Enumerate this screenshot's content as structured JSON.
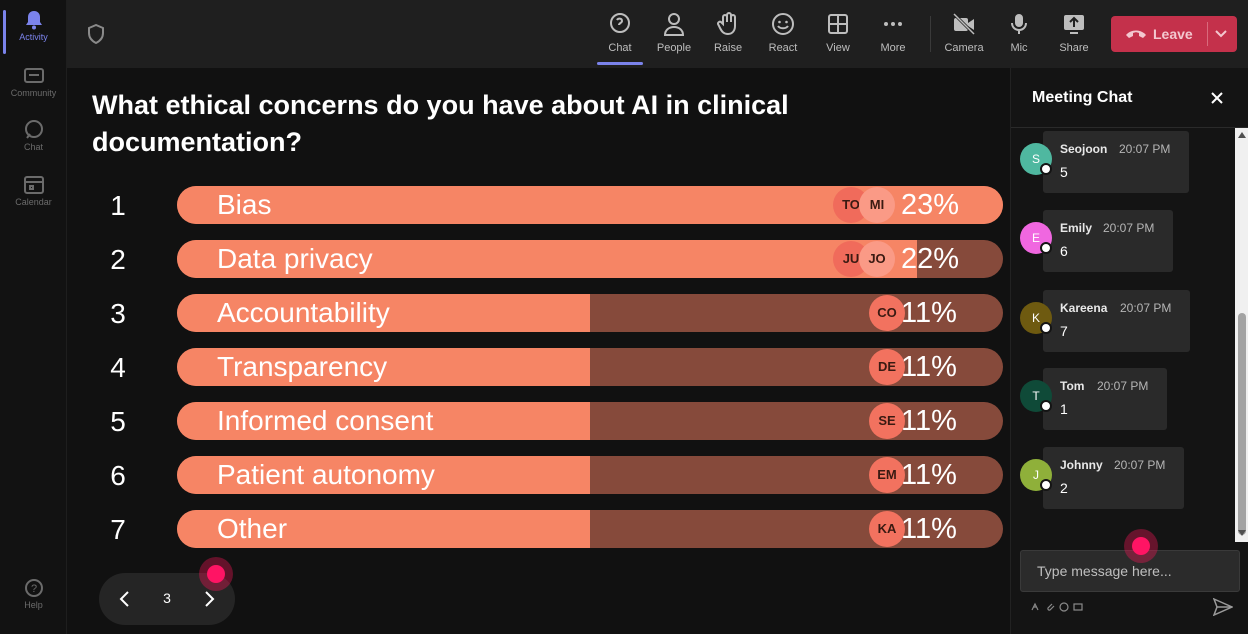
{
  "rail": {
    "items": [
      {
        "label": "Activity",
        "icon": "bell-icon",
        "active": true
      },
      {
        "label": "Community",
        "icon": "community-icon",
        "active": false
      },
      {
        "label": "Chat",
        "icon": "chat-icon",
        "active": false
      },
      {
        "label": "Calendar",
        "icon": "calendar-icon",
        "active": false
      }
    ],
    "help_label": "Help"
  },
  "toolbar": {
    "tools": [
      {
        "label": "Chat",
        "icon": "chat-icon",
        "active": true
      },
      {
        "label": "People",
        "icon": "people-icon"
      },
      {
        "label": "Raise",
        "icon": "hand-icon"
      },
      {
        "label": "React",
        "icon": "smiley-icon"
      },
      {
        "label": "View",
        "icon": "grid-icon"
      },
      {
        "label": "More",
        "icon": "more-icon"
      },
      {
        "label": "Camera",
        "icon": "camera-off-icon"
      },
      {
        "label": "Mic",
        "icon": "mic-icon"
      },
      {
        "label": "Share",
        "icon": "share-icon"
      }
    ],
    "leave_label": "Leave"
  },
  "poll": {
    "question": "What ethical concerns do you have about AI in clinical documentation?",
    "options": [
      {
        "num": "1",
        "label": "Bias",
        "percent": 23,
        "pct_text": "23%",
        "voters": [
          "TO",
          "MI"
        ]
      },
      {
        "num": "2",
        "label": "Data privacy",
        "percent": 22,
        "pct_text": "22%",
        "voters": [
          "JU",
          "JO"
        ]
      },
      {
        "num": "3",
        "label": "Accountability",
        "percent": 11,
        "pct_text": "11%",
        "voters": [
          "CO"
        ]
      },
      {
        "num": "4",
        "label": "Transparency",
        "percent": 11,
        "pct_text": "11%",
        "voters": [
          "DE"
        ]
      },
      {
        "num": "5",
        "label": "Informed consent",
        "percent": 11,
        "pct_text": "11%",
        "voters": [
          "SE"
        ]
      },
      {
        "num": "6",
        "label": "Patient autonomy",
        "percent": 11,
        "pct_text": "11%",
        "voters": [
          "EM"
        ]
      },
      {
        "num": "7",
        "label": "Other",
        "percent": 11,
        "pct_text": "11%",
        "voters": [
          "KA"
        ]
      }
    ]
  },
  "pager": {
    "page": "3"
  },
  "chat": {
    "title": "Meeting Chat",
    "messages": [
      {
        "initial": "S",
        "name": "Seojoon",
        "time": "20:07 PM",
        "text": "5",
        "color": "#4fb8a0"
      },
      {
        "initial": "E",
        "name": "Emily",
        "time": "20:07 PM",
        "text": "6",
        "color": "#f067e0"
      },
      {
        "initial": "K",
        "name": "Kareena",
        "time": "20:07 PM",
        "text": "7",
        "color": "#6e5a10"
      },
      {
        "initial": "T",
        "name": "Tom",
        "time": "20:07 PM",
        "text": "1",
        "color": "#0f4a38"
      },
      {
        "initial": "J",
        "name": "Johnny",
        "time": "20:07 PM",
        "text": "2",
        "color": "#8fb03a"
      }
    ],
    "input_placeholder": "Type message here..."
  },
  "colors": {
    "accent": "#7b83eb",
    "leave": "#c4314b",
    "bar_fill": "#f68565",
    "bar_track": "#864a3b",
    "cursor": "#ff1464"
  }
}
